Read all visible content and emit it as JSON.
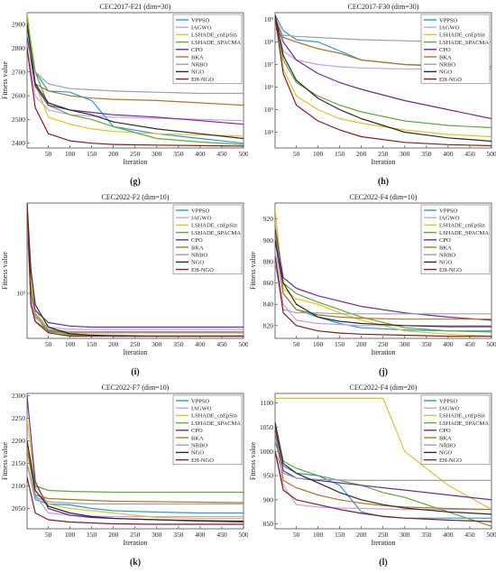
{
  "series_colors": {
    "VPPSO": "#1f9be8",
    "IAGWO": "#c79cf2",
    "LSHADE_cnEpSin": "#e3c21e",
    "LSHADE_SPACMA": "#62a832",
    "CPO": "#6b2a9e",
    "BKA": "#b8741a",
    "NRBO": "#9aa0a6",
    "NGO": "#2b2b2b",
    "EH-NGO": "#8b1a1a"
  },
  "chart_data": [
    {
      "type": "line",
      "panel_label": "(g)",
      "title": "CEC2017-F21 (dim=30)",
      "xlabel": "Iteration",
      "ylabel": "Fitness value",
      "xlim": [
        1,
        500
      ],
      "ylim": [
        2380,
        2950
      ],
      "yscale": "linear",
      "xticks": [
        "50",
        "100",
        "150",
        "200",
        "250",
        "300",
        "350",
        "400",
        "450",
        "500"
      ],
      "yticks": [
        {
          "value": 2400,
          "label": "2400"
        },
        {
          "value": 2500,
          "label": "2500"
        },
        {
          "value": 2600,
          "label": "2600"
        },
        {
          "value": 2700,
          "label": "2700"
        },
        {
          "value": 2800,
          "label": "2800"
        },
        {
          "value": 2900,
          "label": "2900"
        }
      ],
      "x": [
        1,
        20,
        50,
        100,
        150,
        200,
        300,
        400,
        500
      ],
      "series": [
        {
          "name": "VPPSO",
          "values": [
            2900,
            2700,
            2620,
            2615,
            2580,
            2470,
            2440,
            2420,
            2400
          ]
        },
        {
          "name": "IAGWO",
          "values": [
            2800,
            2600,
            2540,
            2520,
            2515,
            2510,
            2505,
            2500,
            2495
          ]
        },
        {
          "name": "LSHADE_cnEpSin",
          "values": [
            2950,
            2650,
            2510,
            2480,
            2460,
            2450,
            2440,
            2435,
            2430
          ]
        },
        {
          "name": "LSHADE_SPACMA",
          "values": [
            2930,
            2700,
            2560,
            2520,
            2500,
            2470,
            2420,
            2405,
            2395
          ]
        },
        {
          "name": "CPO",
          "values": [
            2850,
            2640,
            2560,
            2540,
            2530,
            2520,
            2510,
            2495,
            2480
          ]
        },
        {
          "name": "BKA",
          "values": [
            2900,
            2650,
            2620,
            2600,
            2590,
            2585,
            2580,
            2570,
            2560
          ]
        },
        {
          "name": "NRBO",
          "values": [
            2820,
            2700,
            2650,
            2630,
            2625,
            2620,
            2615,
            2610,
            2610
          ]
        },
        {
          "name": "NGO",
          "values": [
            2900,
            2650,
            2570,
            2540,
            2520,
            2490,
            2460,
            2440,
            2420
          ]
        },
        {
          "name": "EH-NGO",
          "values": [
            2800,
            2550,
            2440,
            2410,
            2400,
            2395,
            2392,
            2390,
            2388
          ]
        }
      ]
    },
    {
      "type": "line",
      "panel_label": "(h)",
      "title": "CEC2017-F30 (dim=30)",
      "xlabel": "Iteration",
      "ylabel": "",
      "xlim": [
        1,
        500
      ],
      "ylim": [
        3.3,
        9.3
      ],
      "yscale": "log10",
      "xticks": [
        "50",
        "100",
        "150",
        "200",
        "250",
        "300",
        "350",
        "400",
        "450",
        "500"
      ],
      "yticks": [
        {
          "value": 4,
          "label": "10⁴"
        },
        {
          "value": 5,
          "label": "10⁵"
        },
        {
          "value": 6,
          "label": "10⁶"
        },
        {
          "value": 7,
          "label": "10⁷"
        },
        {
          "value": 8,
          "label": "10⁸"
        },
        {
          "value": 9,
          "label": "10⁹"
        }
      ],
      "x": [
        1,
        20,
        50,
        100,
        150,
        200,
        300,
        400,
        500
      ],
      "series": [
        {
          "name": "VPPSO",
          "values": [
            9.2,
            8.5,
            8.1,
            8.0,
            7.6,
            7.2,
            7.0,
            6.9,
            6.8
          ]
        },
        {
          "name": "IAGWO",
          "values": [
            9.0,
            7.6,
            7.2,
            7.0,
            6.9,
            6.85,
            6.8,
            6.8,
            6.8
          ]
        },
        {
          "name": "LSHADE_cnEpSin",
          "values": [
            9.2,
            6.8,
            5.6,
            5.0,
            4.6,
            4.4,
            4.1,
            3.9,
            3.8
          ]
        },
        {
          "name": "LSHADE_SPACMA",
          "values": [
            9.2,
            7.2,
            6.2,
            5.6,
            5.2,
            4.9,
            4.5,
            4.3,
            4.2
          ]
        },
        {
          "name": "CPO",
          "values": [
            9.0,
            8.0,
            7.2,
            6.6,
            6.2,
            5.9,
            5.4,
            5.0,
            4.6
          ]
        },
        {
          "name": "BKA",
          "values": [
            9.1,
            8.2,
            8.0,
            7.7,
            7.5,
            7.2,
            7.0,
            6.95,
            6.9
          ]
        },
        {
          "name": "NRBO",
          "values": [
            8.6,
            8.3,
            8.25,
            8.2,
            8.15,
            8.1,
            8.05,
            8.0,
            8.0
          ]
        },
        {
          "name": "NGO",
          "values": [
            9.2,
            7.4,
            6.3,
            5.5,
            5.0,
            4.6,
            4.0,
            3.75,
            3.6
          ]
        },
        {
          "name": "EH-NGO",
          "values": [
            9.1,
            6.6,
            5.2,
            4.5,
            4.1,
            3.8,
            3.55,
            3.45,
            3.4
          ]
        }
      ]
    },
    {
      "type": "line",
      "panel_label": "(i)",
      "title": "CEC2022-F2 (dim=10)",
      "xlabel": "Iteration",
      "ylabel": "Fitness value",
      "xlim": [
        1,
        500
      ],
      "ylim": [
        2.6,
        3.8
      ],
      "yscale": "log10",
      "xticks": [
        "50",
        "100",
        "150",
        "200",
        "250",
        "300",
        "350",
        "400",
        "450",
        "500"
      ],
      "yticks": [
        {
          "value": 3,
          "label": "10³"
        }
      ],
      "x": [
        1,
        10,
        20,
        50,
        100,
        150,
        200,
        300,
        400,
        500
      ],
      "series": [
        {
          "name": "VPPSO",
          "values": [
            3.8,
            3.0,
            2.8,
            2.66,
            2.64,
            2.63,
            2.63,
            2.62,
            2.62,
            2.62
          ]
        },
        {
          "name": "IAGWO",
          "values": [
            3.6,
            2.95,
            2.78,
            2.7,
            2.68,
            2.68,
            2.68,
            2.68,
            2.68,
            2.68
          ]
        },
        {
          "name": "LSHADE_cnEpSin",
          "values": [
            3.75,
            3.1,
            2.85,
            2.68,
            2.64,
            2.63,
            2.62,
            2.62,
            2.62,
            2.62
          ]
        },
        {
          "name": "LSHADE_SPACMA",
          "values": [
            3.7,
            3.05,
            2.82,
            2.67,
            2.63,
            2.63,
            2.62,
            2.62,
            2.62,
            2.62
          ]
        },
        {
          "name": "CPO",
          "values": [
            3.7,
            3.0,
            2.85,
            2.74,
            2.71,
            2.7,
            2.7,
            2.7,
            2.7,
            2.7
          ]
        },
        {
          "name": "BKA",
          "values": [
            3.75,
            2.9,
            2.75,
            2.67,
            2.65,
            2.65,
            2.65,
            2.65,
            2.65,
            2.65
          ]
        },
        {
          "name": "NRBO",
          "values": [
            3.6,
            3.0,
            2.8,
            2.68,
            2.66,
            2.66,
            2.66,
            2.66,
            2.66,
            2.66
          ]
        },
        {
          "name": "NGO",
          "values": [
            3.8,
            3.2,
            2.9,
            2.7,
            2.64,
            2.63,
            2.62,
            2.62,
            2.62,
            2.62
          ]
        },
        {
          "name": "EH-NGO",
          "values": [
            3.8,
            2.9,
            2.75,
            2.65,
            2.62,
            2.62,
            2.62,
            2.62,
            2.62,
            2.62
          ]
        }
      ]
    },
    {
      "type": "line",
      "panel_label": "(j)",
      "title": "CEC2022-F4 (dim=10)",
      "xlabel": "Iteration",
      "ylabel": "Fitness value",
      "xlim": [
        1,
        500
      ],
      "ylim": [
        808,
        935
      ],
      "yscale": "linear",
      "xticks": [
        "50",
        "100",
        "150",
        "200",
        "250",
        "300",
        "350",
        "400",
        "450",
        "500"
      ],
      "yticks": [
        {
          "value": 820,
          "label": "820"
        },
        {
          "value": 840,
          "label": "840"
        },
        {
          "value": 860,
          "label": "860"
        },
        {
          "value": 880,
          "label": "880"
        },
        {
          "value": 900,
          "label": "900"
        },
        {
          "value": 920,
          "label": "920"
        }
      ],
      "x": [
        1,
        20,
        50,
        100,
        150,
        200,
        300,
        400,
        500
      ],
      "series": [
        {
          "name": "VPPSO",
          "values": [
            900,
            850,
            835,
            828,
            822,
            818,
            816,
            815,
            815
          ]
        },
        {
          "name": "IAGWO",
          "values": [
            890,
            840,
            825,
            822,
            821,
            820,
            820,
            820,
            820
          ]
        },
        {
          "name": "LSHADE_cnEpSin",
          "values": [
            930,
            855,
            845,
            840,
            832,
            825,
            815,
            812,
            810
          ]
        },
        {
          "name": "LSHADE_SPACMA",
          "values": [
            915,
            860,
            850,
            842,
            835,
            828,
            818,
            815,
            814
          ]
        },
        {
          "name": "CPO",
          "values": [
            910,
            865,
            855,
            848,
            843,
            838,
            832,
            828,
            825
          ]
        },
        {
          "name": "BKA",
          "values": [
            905,
            850,
            835,
            830,
            828,
            827,
            826,
            826,
            826
          ]
        },
        {
          "name": "NRBO",
          "values": [
            880,
            835,
            832,
            832,
            831,
            831,
            831,
            831,
            831
          ]
        },
        {
          "name": "NGO",
          "values": [
            900,
            860,
            840,
            828,
            824,
            822,
            820,
            819,
            819
          ]
        },
        {
          "name": "EH-NGO",
          "values": [
            885,
            832,
            820,
            815,
            813,
            812,
            811,
            810,
            810
          ]
        }
      ]
    },
    {
      "type": "line",
      "panel_label": "(k)",
      "title": "CEC2022-F7 (dim=10)",
      "xlabel": "Iteration",
      "ylabel": "Fitness value",
      "xlim": [
        1,
        500
      ],
      "ylim": [
        2005,
        2305
      ],
      "yscale": "linear",
      "xticks": [
        "50",
        "100",
        "150",
        "200",
        "250",
        "300",
        "350",
        "400",
        "450",
        "500"
      ],
      "yticks": [
        {
          "value": 2050,
          "label": "2050"
        },
        {
          "value": 2100,
          "label": "2100"
        },
        {
          "value": 2150,
          "label": "2150"
        },
        {
          "value": 2200,
          "label": "2200"
        },
        {
          "value": 2250,
          "label": "2250"
        },
        {
          "value": 2300,
          "label": "2300"
        }
      ],
      "x": [
        1,
        20,
        50,
        100,
        150,
        200,
        300,
        400,
        500
      ],
      "series": [
        {
          "name": "VPPSO",
          "values": [
            2150,
            2070,
            2060,
            2058,
            2050,
            2045,
            2042,
            2040,
            2040
          ]
        },
        {
          "name": "IAGWO",
          "values": [
            2200,
            2080,
            2040,
            2035,
            2033,
            2032,
            2032,
            2032,
            2032
          ]
        },
        {
          "name": "LSHADE_cnEpSin",
          "values": [
            2250,
            2100,
            2060,
            2050,
            2045,
            2040,
            2030,
            2028,
            2028
          ]
        },
        {
          "name": "LSHADE_SPACMA",
          "values": [
            2200,
            2100,
            2090,
            2088,
            2087,
            2086,
            2086,
            2086,
            2086
          ]
        },
        {
          "name": "CPO",
          "values": [
            2300,
            2110,
            2050,
            2035,
            2030,
            2028,
            2025,
            2022,
            2020
          ]
        },
        {
          "name": "BKA",
          "values": [
            2180,
            2080,
            2072,
            2070,
            2068,
            2066,
            2065,
            2064,
            2063
          ]
        },
        {
          "name": "NRBO",
          "values": [
            2150,
            2075,
            2065,
            2062,
            2060,
            2060,
            2060,
            2060,
            2060
          ]
        },
        {
          "name": "NGO",
          "values": [
            2200,
            2090,
            2055,
            2040,
            2032,
            2028,
            2025,
            2023,
            2022
          ]
        },
        {
          "name": "EH-NGO",
          "values": [
            2120,
            2040,
            2025,
            2020,
            2018,
            2016,
            2015,
            2015,
            2015
          ]
        }
      ]
    },
    {
      "type": "line",
      "panel_label": "(l)",
      "title": "CEC2022-F4 (dim=20)",
      "xlabel": "Iteration",
      "ylabel": "Fitness value",
      "xlim": [
        1,
        500
      ],
      "ylim": [
        840,
        1120
      ],
      "yscale": "linear",
      "xticks": [
        "50",
        "100",
        "150",
        "200",
        "250",
        "300",
        "350",
        "400",
        "450",
        "500"
      ],
      "yticks": [
        {
          "value": 850,
          "label": "850"
        },
        {
          "value": 900,
          "label": "900"
        },
        {
          "value": 950,
          "label": "950"
        },
        {
          "value": 1000,
          "label": "1000"
        },
        {
          "value": 1050,
          "label": "1050"
        },
        {
          "value": 1100,
          "label": "1100"
        }
      ],
      "x": [
        1,
        20,
        50,
        100,
        150,
        200,
        250,
        300,
        400,
        500
      ],
      "series": [
        {
          "name": "VPPSO",
          "values": [
            1020,
            970,
            955,
            950,
            930,
            875,
            865,
            862,
            862,
            862
          ]
        },
        {
          "name": "IAGWO",
          "values": [
            1000,
            930,
            890,
            885,
            883,
            882,
            881,
            880,
            880,
            880
          ]
        },
        {
          "name": "LSHADE_cnEpSin",
          "values": [
            1110,
            1110,
            1110,
            1110,
            1110,
            1110,
            1110,
            1000,
            930,
            880
          ]
        },
        {
          "name": "LSHADE_SPACMA",
          "values": [
            1060,
            980,
            965,
            950,
            940,
            930,
            915,
            905,
            875,
            845
          ]
        },
        {
          "name": "CPO",
          "values": [
            1050,
            960,
            945,
            940,
            935,
            930,
            925,
            920,
            910,
            900
          ]
        },
        {
          "name": "BKA",
          "values": [
            1040,
            940,
            925,
            910,
            900,
            893,
            888,
            885,
            882,
            880
          ]
        },
        {
          "name": "NRBO",
          "values": [
            1000,
            955,
            945,
            942,
            941,
            940,
            940,
            940,
            940,
            940
          ]
        },
        {
          "name": "NGO",
          "values": [
            1060,
            975,
            955,
            935,
            915,
            900,
            890,
            883,
            875,
            870
          ]
        },
        {
          "name": "EH-NGO",
          "values": [
            1000,
            920,
            900,
            890,
            880,
            872,
            866,
            862,
            858,
            855
          ]
        }
      ]
    }
  ]
}
